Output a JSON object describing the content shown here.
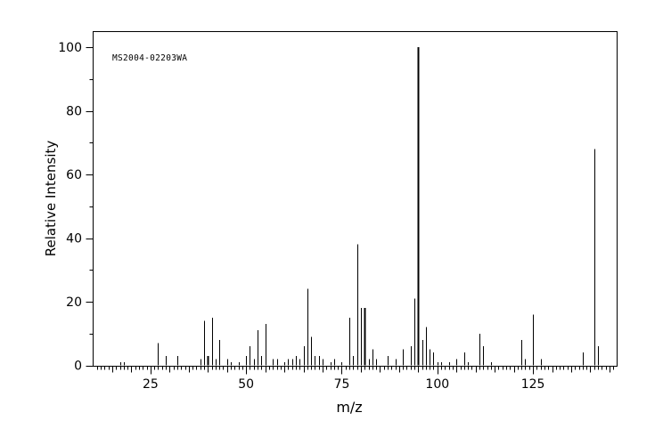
{
  "chart_data": {
    "type": "bar",
    "subtype": "mass-spectrum",
    "annotation": "MS2004-02203WA",
    "xlabel": "m/z",
    "ylabel": "Relative Intensity",
    "xlim": [
      10,
      147
    ],
    "ylim": [
      0,
      105
    ],
    "x_major_ticks": [
      25,
      50,
      75,
      100,
      125
    ],
    "x_medium_tick_step": 5,
    "x_minor_tick_step": 1,
    "y_major_ticks": [
      0,
      20,
      40,
      60,
      80,
      100
    ],
    "y_minor_ticks": [
      10,
      30,
      50,
      70,
      90
    ],
    "grid": false,
    "legend": false,
    "line_color": "#000000",
    "background_color": "#ffffff",
    "base_peak": 95,
    "bold_peaks": [
      40,
      81,
      95
    ],
    "peaks": [
      [
        17,
        1
      ],
      [
        18,
        1
      ],
      [
        27,
        7
      ],
      [
        29,
        3
      ],
      [
        32,
        3
      ],
      [
        38,
        2
      ],
      [
        39,
        14
      ],
      [
        40,
        3
      ],
      [
        41,
        15
      ],
      [
        42,
        2
      ],
      [
        43,
        8
      ],
      [
        45,
        2
      ],
      [
        46,
        1
      ],
      [
        48,
        1
      ],
      [
        50,
        3
      ],
      [
        51,
        6
      ],
      [
        52,
        2
      ],
      [
        53,
        11
      ],
      [
        54,
        3
      ],
      [
        55,
        13
      ],
      [
        57,
        2
      ],
      [
        58,
        2
      ],
      [
        60,
        1
      ],
      [
        61,
        2
      ],
      [
        62,
        2
      ],
      [
        63,
        3
      ],
      [
        64,
        2
      ],
      [
        65,
        6
      ],
      [
        66,
        24
      ],
      [
        67,
        9
      ],
      [
        68,
        3
      ],
      [
        69,
        3
      ],
      [
        70,
        2
      ],
      [
        72,
        1
      ],
      [
        73,
        2
      ],
      [
        75,
        1
      ],
      [
        77,
        15
      ],
      [
        78,
        3
      ],
      [
        79,
        38
      ],
      [
        80,
        18
      ],
      [
        81,
        18
      ],
      [
        82,
        2
      ],
      [
        83,
        5
      ],
      [
        84,
        2
      ],
      [
        87,
        3
      ],
      [
        89,
        2
      ],
      [
        91,
        5
      ],
      [
        93,
        6
      ],
      [
        94,
        21
      ],
      [
        95,
        100
      ],
      [
        96,
        8
      ],
      [
        97,
        12
      ],
      [
        98,
        5
      ],
      [
        99,
        4
      ],
      [
        100,
        1
      ],
      [
        101,
        1
      ],
      [
        103,
        1
      ],
      [
        105,
        2
      ],
      [
        107,
        4
      ],
      [
        108,
        1
      ],
      [
        111,
        10
      ],
      [
        112,
        6
      ],
      [
        114,
        1
      ],
      [
        122,
        8
      ],
      [
        123,
        2
      ],
      [
        125,
        16
      ],
      [
        127,
        2
      ],
      [
        138,
        4
      ],
      [
        141,
        68
      ],
      [
        142,
        6
      ]
    ]
  }
}
